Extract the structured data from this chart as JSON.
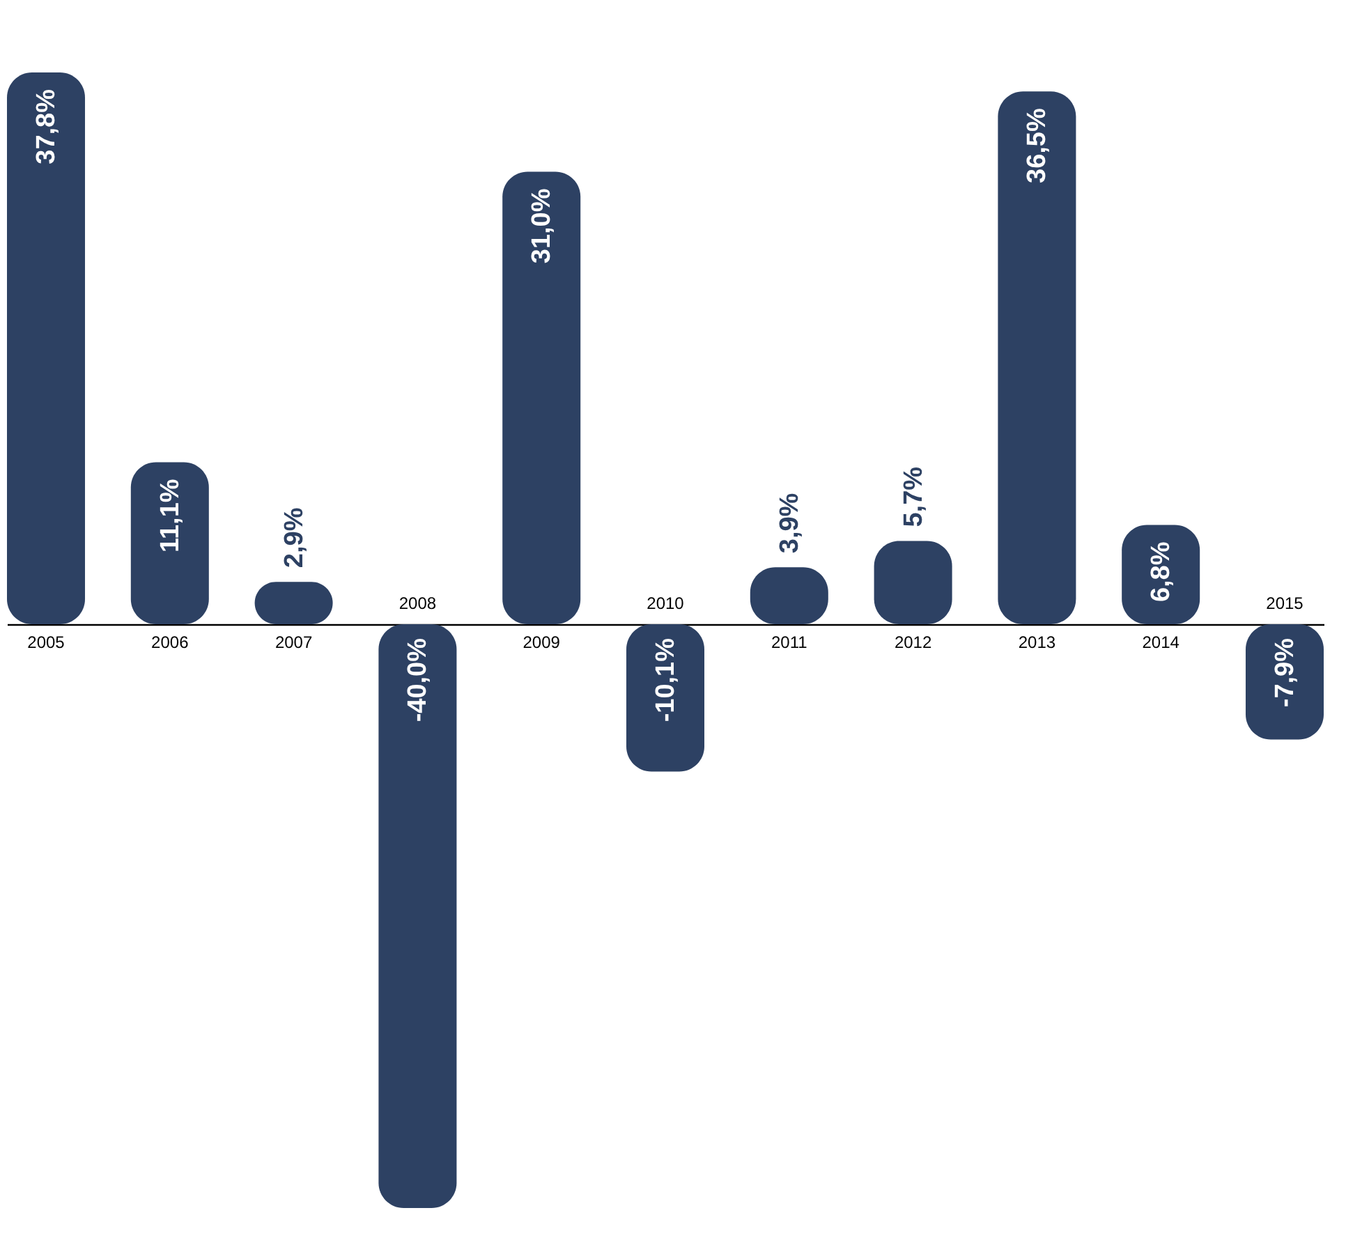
{
  "chart_data": {
    "type": "bar",
    "categories": [
      "2005",
      "2006",
      "2007",
      "2008",
      "2009",
      "2010",
      "2011",
      "2012",
      "2013",
      "2014",
      "2015"
    ],
    "values": [
      37.8,
      11.1,
      2.9,
      -40.0,
      31.0,
      -10.1,
      3.9,
      5.7,
      36.5,
      6.8,
      -7.9
    ],
    "color": "#2d4163",
    "value_labels": [
      "37,8%",
      "11,1%",
      "2,9%",
      "-40,0%",
      "31,0%",
      "-10,1%",
      "3,9%",
      "5,7%",
      "36,5%",
      "6,8%",
      "-7,9%"
    ]
  }
}
